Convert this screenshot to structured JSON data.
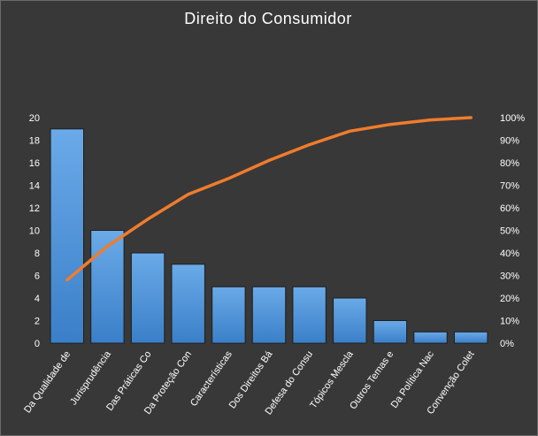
{
  "chart_data": {
    "type": "bar",
    "title": "Direito do Consumidor",
    "categories": [
      "Da Qualidade de",
      "Jurisprudência",
      "Das Práticas Co",
      "Da Proteção Con",
      "Características",
      "Dos Direitos Bá",
      "Defesa do Consu",
      "Tópicos Mescla",
      "Outros Temas e",
      "Da Política Nac",
      "Convenção Colet"
    ],
    "values": [
      19,
      10,
      8,
      7,
      5,
      5,
      5,
      4,
      2,
      1,
      1
    ],
    "cumulative_percent": [
      28,
      43,
      55,
      66,
      73,
      81,
      88,
      94,
      97,
      99,
      100
    ],
    "ylim": [
      0,
      20
    ],
    "yticks": [
      "0",
      "2",
      "4",
      "6",
      "8",
      "10",
      "12",
      "14",
      "16",
      "18",
      "20"
    ],
    "y2lim": [
      0,
      100
    ],
    "y2ticks": [
      "0%",
      "10%",
      "20%",
      "30%",
      "40%",
      "50%",
      "60%",
      "70%",
      "80%",
      "90%",
      "100%"
    ],
    "grid": false,
    "legend": "none",
    "colors": {
      "bar": "#4a90d9",
      "bar_top": "#6aaae8",
      "line": "#f07c2c",
      "background": "#383838",
      "text": "#ffffff"
    }
  }
}
